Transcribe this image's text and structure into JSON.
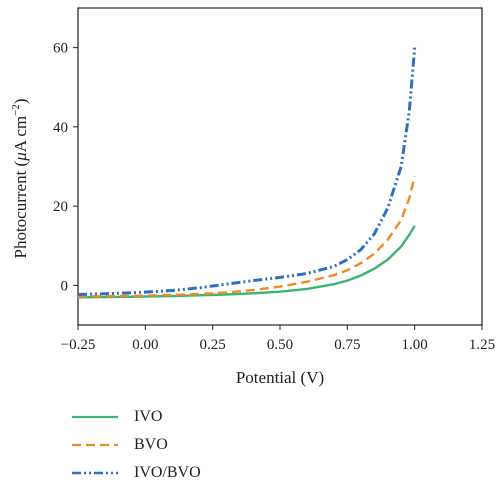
{
  "chart_data": {
    "type": "line",
    "xlabel": "Potential (V)",
    "ylabel_parts": [
      "Photocurrent (",
      "μ",
      "A cm",
      "−2",
      ")"
    ],
    "xlim": [
      -0.25,
      1.25
    ],
    "ylim": [
      -10,
      70
    ],
    "xticks": [
      -0.25,
      0.0,
      0.25,
      0.5,
      0.75,
      1.0,
      1.25
    ],
    "xtick_labels": [
      "−0.25",
      "0.00",
      "0.25",
      "0.50",
      "0.75",
      "1.00",
      "1.25"
    ],
    "yticks": [
      0,
      20,
      40,
      60
    ],
    "ytick_labels": [
      "0",
      "20",
      "40",
      "60"
    ],
    "grid": false,
    "legend_position": "bottom-left, below plot",
    "series": [
      {
        "name": "IVO",
        "color": "#3cb371",
        "style": "solid",
        "x": [
          -0.25,
          -0.1,
          0.0,
          0.1,
          0.2,
          0.3,
          0.4,
          0.5,
          0.6,
          0.7,
          0.75,
          0.8,
          0.85,
          0.9,
          0.95,
          0.98,
          1.0
        ],
        "y": [
          -3.0,
          -2.9,
          -2.8,
          -2.7,
          -2.5,
          -2.3,
          -2.0,
          -1.6,
          -0.9,
          0.3,
          1.2,
          2.5,
          4.2,
          6.5,
          9.8,
          12.8,
          15.0
        ]
      },
      {
        "name": "BVO",
        "color": "#f08a24",
        "style": "dashed",
        "x": [
          -0.25,
          -0.1,
          0.0,
          0.1,
          0.2,
          0.3,
          0.4,
          0.5,
          0.6,
          0.7,
          0.75,
          0.8,
          0.85,
          0.9,
          0.95,
          0.98,
          1.0
        ],
        "y": [
          -2.8,
          -2.7,
          -2.6,
          -2.4,
          -2.2,
          -1.8,
          -1.2,
          -0.3,
          0.9,
          2.6,
          3.8,
          5.6,
          8.0,
          11.5,
          16.5,
          22.0,
          27.5
        ]
      },
      {
        "name": "IVO/BVO",
        "color": "#2f6fc0",
        "style": "dashdotdot",
        "x": [
          -0.25,
          -0.1,
          0.0,
          0.1,
          0.2,
          0.3,
          0.4,
          0.5,
          0.6,
          0.7,
          0.75,
          0.8,
          0.85,
          0.9,
          0.95,
          0.98,
          1.0
        ],
        "y": [
          -2.3,
          -2.0,
          -1.7,
          -1.3,
          -0.6,
          0.3,
          1.2,
          2.0,
          3.0,
          4.8,
          6.5,
          9.0,
          13.0,
          19.5,
          30.0,
          44.0,
          60.0
        ]
      }
    ]
  }
}
